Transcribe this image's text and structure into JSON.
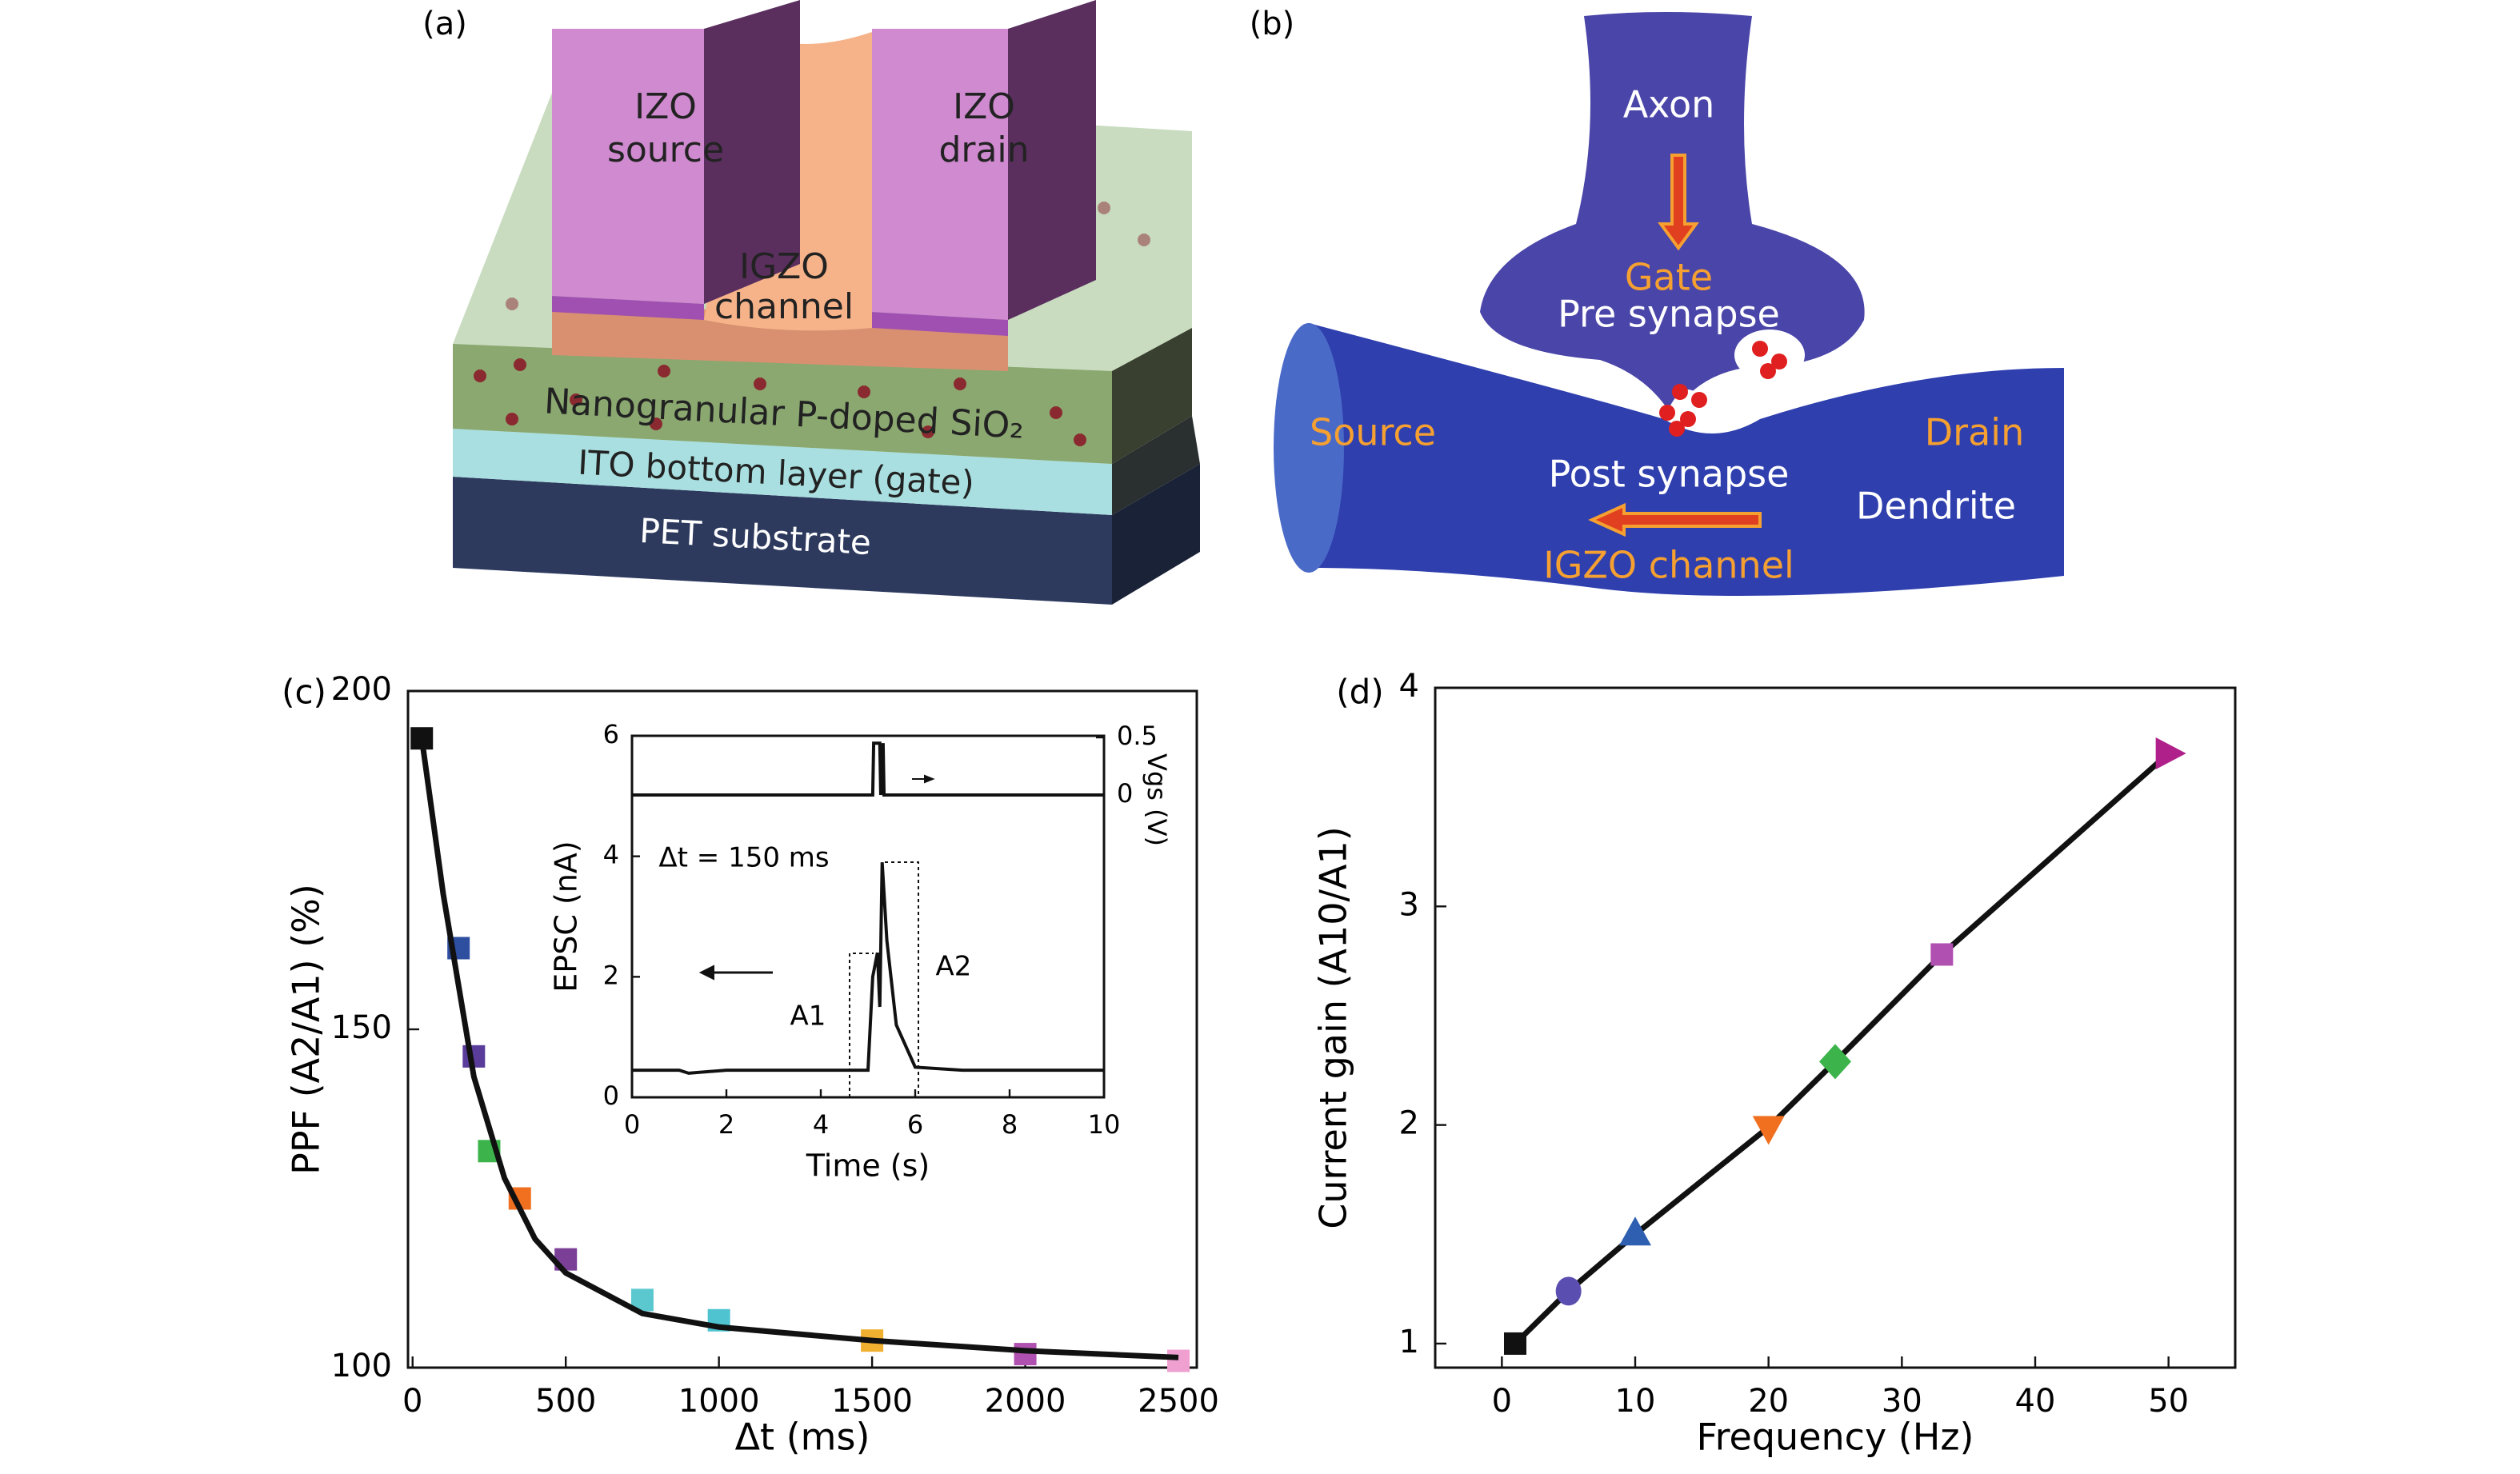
{
  "figure": {
    "panel_labels": [
      "(a)",
      "(b)",
      "(c)",
      "(d)"
    ],
    "device": {
      "source": [
        "IZO",
        "source"
      ],
      "drain": [
        "IZO",
        "drain"
      ],
      "channel": [
        "IGZO",
        "channel"
      ],
      "dielectric": "Nanogranular P-doped SiO₂",
      "gate": "ITO bottom layer (gate)",
      "substrate": "PET substrate"
    },
    "synapse": {
      "axon": "Axon",
      "gate": "Gate",
      "pre": "Pre synapse",
      "source": "Source",
      "drain": "Drain",
      "post": "Post synapse",
      "dendrite": "Dendrite",
      "channel": "IGZO channel"
    }
  },
  "chart_data": [
    {
      "type": "scatter",
      "x_label": "Δt (ms)",
      "y_label": "PPF (A2/A1) (%)",
      "xlim": [
        -15,
        2560
      ],
      "ylim": [
        100,
        200
      ],
      "xticks": [
        0,
        500,
        1000,
        1500,
        2000,
        2500
      ],
      "yticks": [
        100,
        150,
        200
      ],
      "series": [
        {
          "mode": "markers",
          "marker": "square",
          "x": [
            30,
            150,
            200,
            250,
            350,
            500,
            750,
            1000,
            1500,
            2000,
            2500
          ],
          "values": [
            193,
            162,
            146,
            132,
            125,
            116,
            110,
            107,
            104,
            102,
            101
          ],
          "colors": [
            "#111111",
            "#2e4fa0",
            "#5a3d9a",
            "#3cb44b",
            "#f07020",
            "#7b3f98",
            "#5bc8d0",
            "#4fc3d0",
            "#f0b030",
            "#b050b0",
            "#f0a0d0"
          ]
        },
        {
          "mode": "lines",
          "color": "#111111",
          "x": [
            30,
            100,
            200,
            300,
            400,
            500,
            750,
            1000,
            1500,
            2000,
            2500
          ],
          "values": [
            193,
            170,
            143,
            128,
            119,
            114,
            108,
            106,
            104,
            102.5,
            101.5
          ]
        }
      ]
    },
    {
      "type": "line",
      "x_label": "Time (s)",
      "y_label": "EPSC (nA)",
      "y2_label": "Vgs (V)",
      "annotations": [
        "Δt = 150 ms",
        "A1",
        "A2"
      ],
      "xlim": [
        0,
        10
      ],
      "ylim": [
        0,
        6
      ],
      "y2lim": [
        -2.625,
        0.514
      ],
      "xticks": [
        0,
        2,
        4,
        6,
        8,
        10
      ],
      "yticks": [
        0,
        2,
        4,
        6
      ],
      "y2ticks": [
        0,
        0.5
      ],
      "series": [
        {
          "mode": "lines",
          "color": "#111111",
          "x": [
            0,
            1,
            1.2,
            2,
            4,
            5,
            5.1,
            5.2,
            5.25,
            5.3,
            5.4,
            5.6,
            6,
            7,
            8,
            10
          ],
          "values": [
            0.45,
            0.45,
            0.4,
            0.45,
            0.45,
            0.45,
            2.0,
            2.4,
            1.5,
            3.9,
            2.6,
            1.2,
            0.5,
            0.45,
            0.45,
            0.45
          ]
        },
        {
          "mode": "lines",
          "color": "#111111",
          "axis": "y2",
          "x": [
            0,
            5.1,
            5.12,
            5.25,
            5.27,
            5.32,
            5.34,
            10
          ],
          "values": [
            0,
            0,
            0.45,
            0.45,
            0,
            0.45,
            0,
            0
          ]
        }
      ]
    },
    {
      "type": "scatter",
      "x_label": "Frequency (Hz)",
      "y_label": "Current gain (A10/A1)",
      "xlim": [
        -5,
        55
      ],
      "ylim": [
        0.89,
        4
      ],
      "xticks": [
        0,
        10,
        20,
        30,
        40,
        50
      ],
      "yticks": [
        1,
        2,
        3,
        4
      ],
      "series": [
        {
          "mode": "lines+markers",
          "color": "#111111",
          "markers": [
            "square",
            "circle",
            "triangle-up",
            "triangle-down",
            "diamond",
            "square",
            "triangle-right"
          ],
          "x": [
            1,
            5,
            10,
            20,
            25,
            33,
            50
          ],
          "values": [
            1.0,
            1.24,
            1.5,
            1.99,
            2.29,
            2.78,
            3.7
          ],
          "colors": [
            "#111111",
            "#5a4fb0",
            "#2e5fb0",
            "#f07020",
            "#3cb44b",
            "#b050b0",
            "#b0208a"
          ]
        }
      ]
    }
  ]
}
